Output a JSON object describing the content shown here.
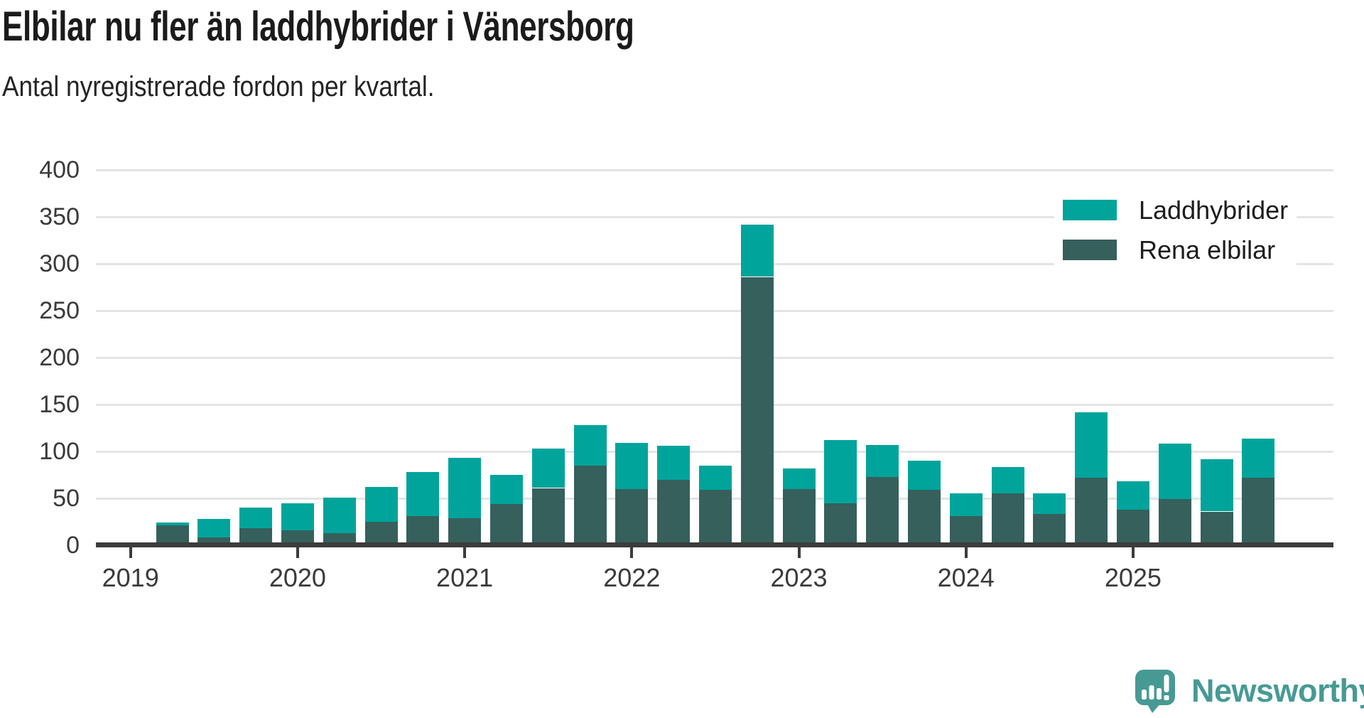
{
  "header": {
    "title": "Elbilar nu fler än laddhybrider i Vänersborg",
    "subtitle": "Antal nyregistrerade fordon per kvartal."
  },
  "legend": {
    "position": "top-right",
    "items": [
      {
        "label": "Laddhybrider",
        "color": "#00a49b"
      },
      {
        "label": "Rena elbilar",
        "color": "#35605c"
      }
    ]
  },
  "footer": {
    "brand": "Newsworthy",
    "color": "#479a94"
  },
  "colors": {
    "laddhybrider": "#00a49b",
    "rena_elbilar": "#35605c",
    "gridline": "#e4e4e4",
    "axis": "#3c3c3c",
    "text": "#1b1b1b"
  },
  "chart_data": {
    "type": "bar",
    "stacked": true,
    "title": "Elbilar nu fler än laddhybrider i Vänersborg",
    "subtitle_note": "Antal nyregistrerade fordon per kvartal.",
    "categories": [
      "2019 Q2",
      "2019 Q3",
      "2019 Q4",
      "2020 Q1",
      "2020 Q2",
      "2020 Q3",
      "2020 Q4",
      "2021 Q1",
      "2021 Q2",
      "2021 Q3",
      "2021 Q4",
      "2022 Q1",
      "2022 Q2",
      "2022 Q3",
      "2022 Q4",
      "2023 Q1",
      "2023 Q2",
      "2023 Q3",
      "2023 Q4",
      "2024 Q1",
      "2024 Q2",
      "2024 Q3",
      "2024 Q4",
      "2025 Q1",
      "2025 Q2",
      "2025 Q3",
      "2025 Q4"
    ],
    "series": [
      {
        "name": "Rena elbilar",
        "color": "#35605c",
        "values": [
          21,
          8,
          18,
          16,
          13,
          25,
          31,
          29,
          44,
          61,
          85,
          60,
          70,
          59,
          286,
          60,
          45,
          73,
          59,
          31,
          55,
          33,
          72,
          38,
          49,
          36,
          72
        ]
      },
      {
        "name": "Laddhybrider",
        "color": "#00a49b",
        "values": [
          3,
          20,
          22,
          29,
          38,
          37,
          47,
          64,
          31,
          42,
          43,
          49,
          36,
          26,
          56,
          22,
          67,
          34,
          31,
          24,
          28,
          22,
          70,
          30,
          59,
          56,
          42
        ]
      }
    ],
    "stack_totals": [
      24,
      28,
      40,
      45,
      51,
      62,
      78,
      93,
      75,
      103,
      128,
      109,
      106,
      85,
      342,
      82,
      112,
      107,
      90,
      55,
      83,
      55,
      142,
      68,
      108,
      92,
      114
    ],
    "x_axis": {
      "tick_labels": [
        "2019",
        "2020",
        "2021",
        "2022",
        "2023",
        "2024",
        "2025"
      ]
    },
    "y_axis": {
      "ticks": [
        0,
        50,
        100,
        150,
        200,
        250,
        300,
        350,
        400
      ],
      "range": [
        0,
        400
      ]
    },
    "grid": true,
    "legend_position": "top-right"
  }
}
